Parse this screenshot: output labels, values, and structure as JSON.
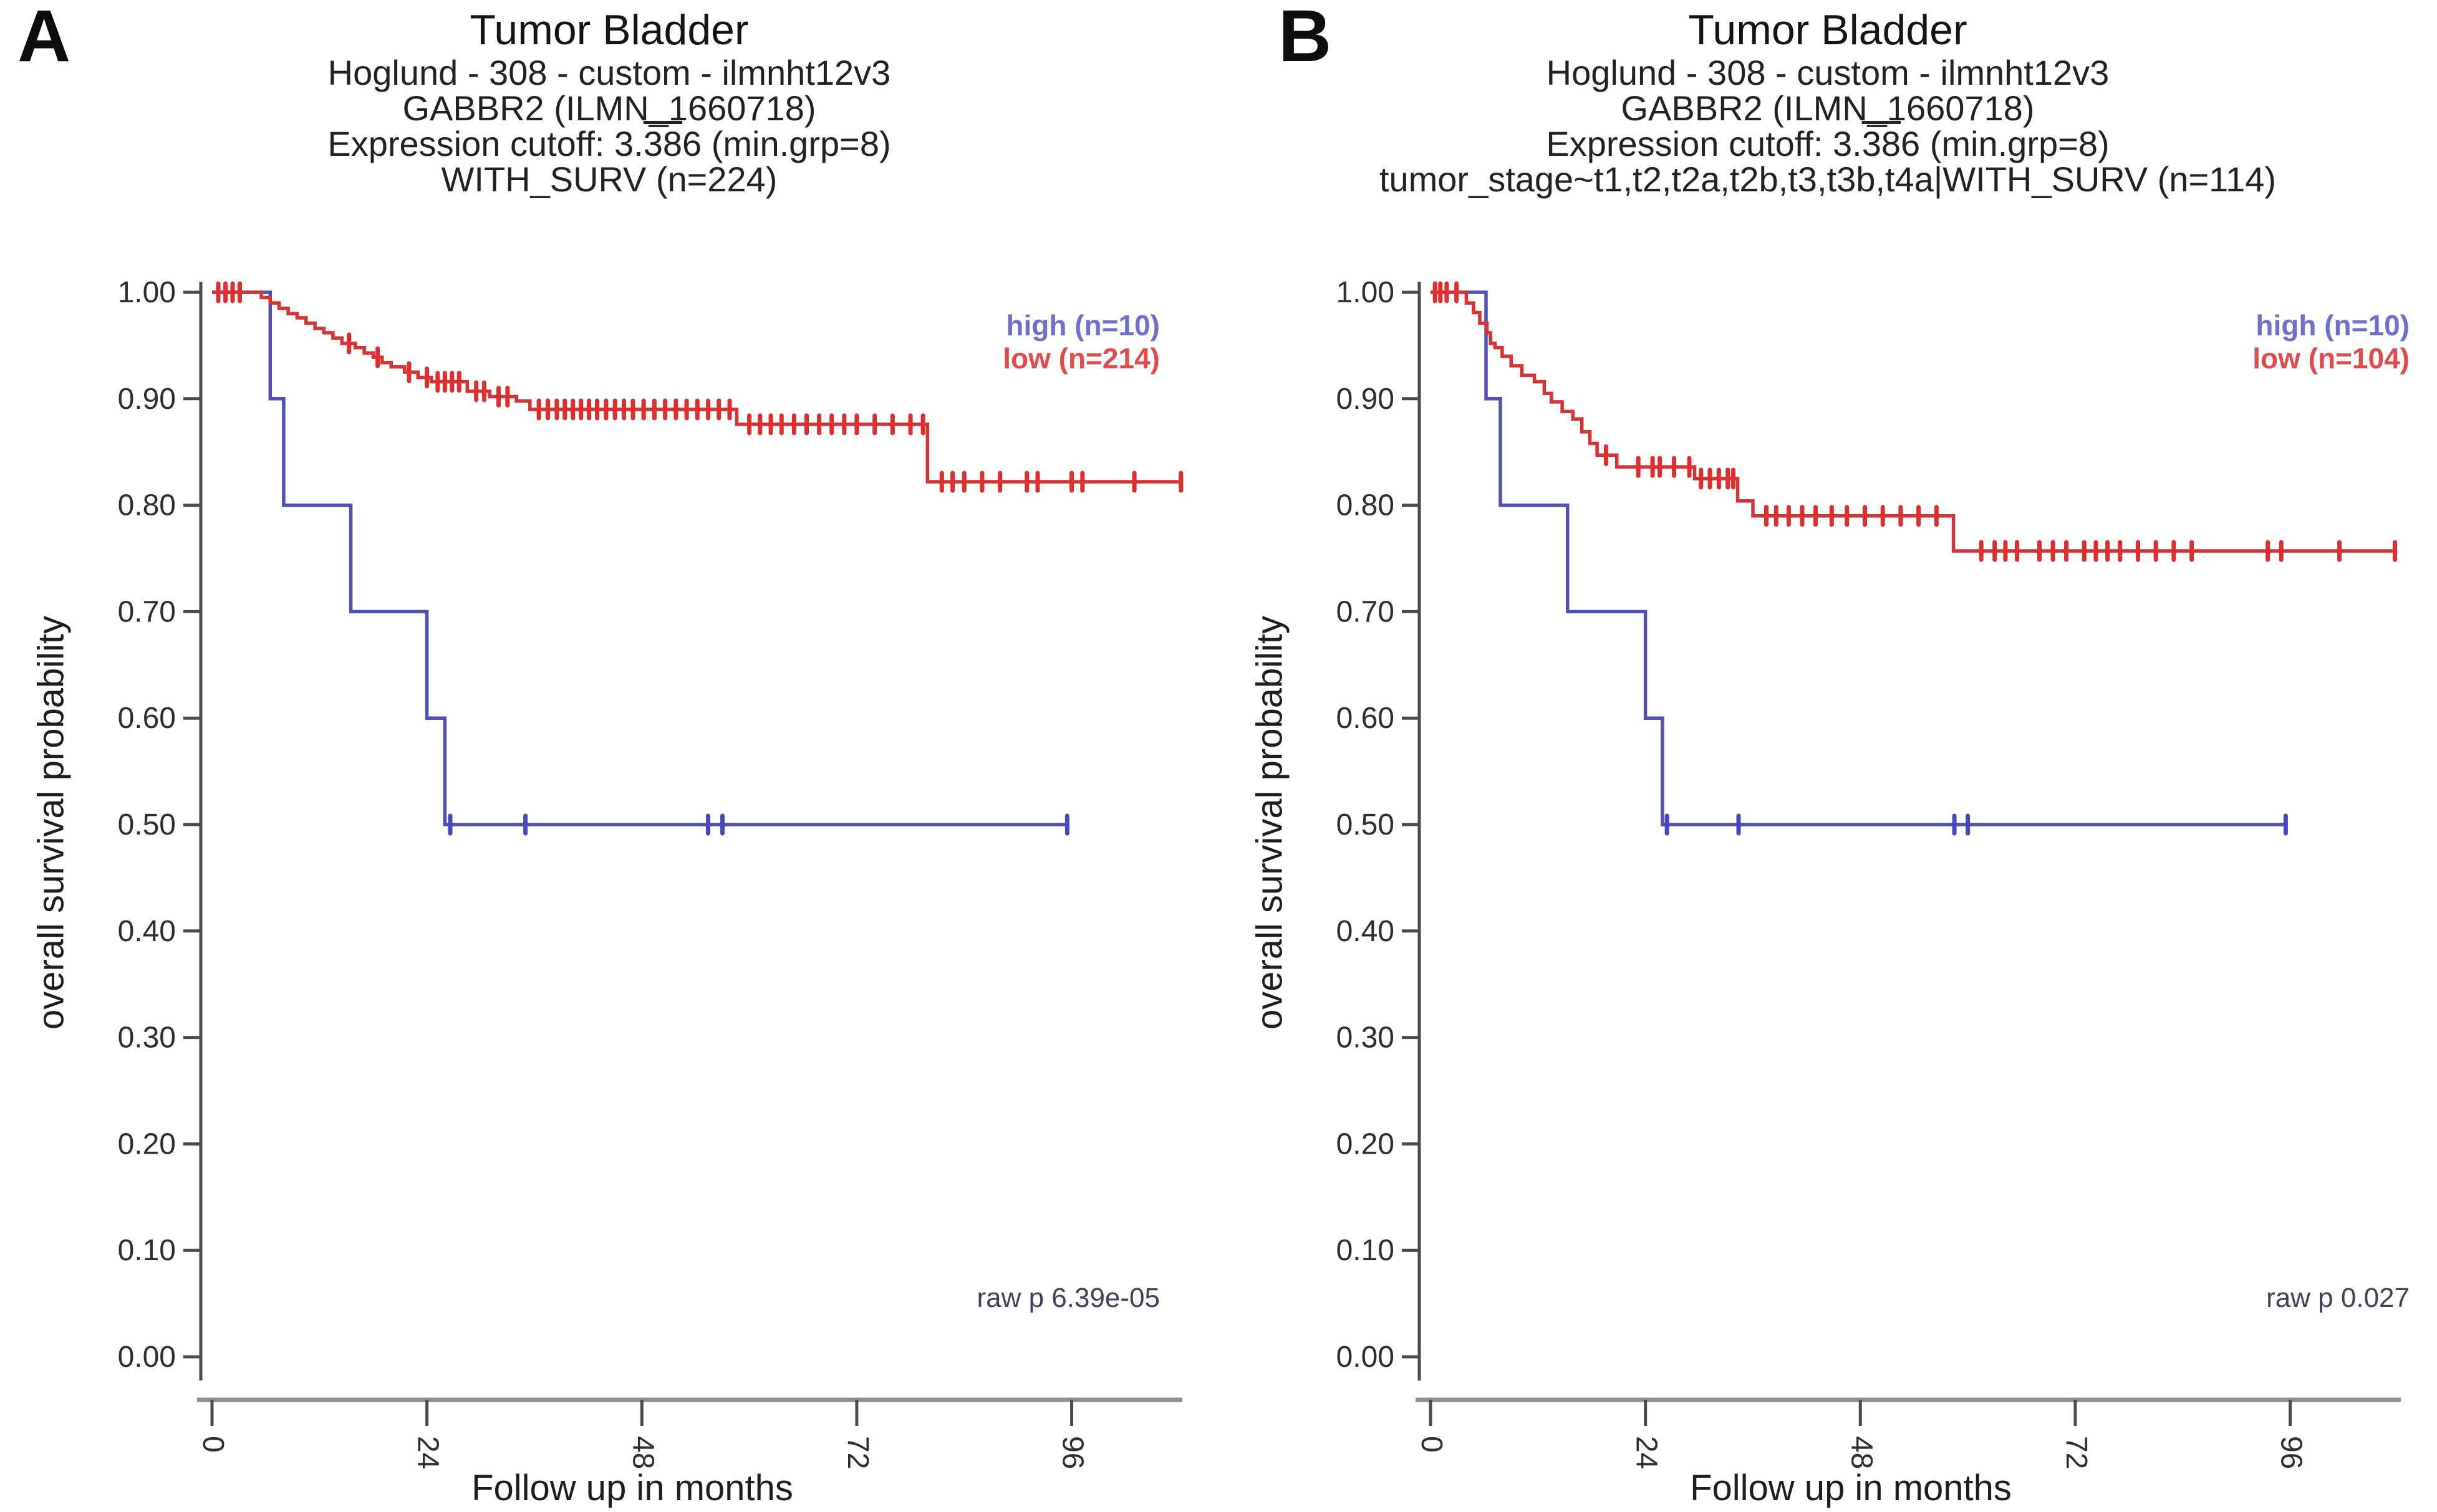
{
  "figure": {
    "background_color": "#ffffff",
    "description_colors": {
      "high_curve": "#5151b4",
      "low_curve": "#d43434"
    }
  },
  "panels": [
    {
      "panel_letter": "A",
      "chart_data": {
        "type": "line",
        "subtype": "kaplan-meier-step",
        "title_lines": [
          "Tumor Bladder",
          "Hoglund - 308 - custom - ilmnht12v3",
          "GABBR2 (ILMN_1660718)",
          "Expression cutoff: 3.386 (min.grp=8)",
          "WITH_SURV (n=224)"
        ],
        "overline_digits": "38",
        "xlabel": "Follow up in months",
        "ylabel": "overall survival probability",
        "xlim": [
          0,
          110
        ],
        "ylim": [
          0,
          1
        ],
        "x_ticks": [
          "0",
          "24",
          "48",
          "72",
          "96"
        ],
        "y_ticks": [
          "1.00",
          "0.90",
          "0.80",
          "0.70",
          "0.60",
          "0.50",
          "0.40",
          "0.30",
          "0.20",
          "0.10",
          "0.00"
        ],
        "grid": false,
        "legend_position": "top-right",
        "legend": [
          {
            "label": "high (n=10)",
            "color": "#6f6fcd"
          },
          {
            "label": "low (n=214)",
            "color": "#e14b4b"
          }
        ],
        "annotation_pvalue": "raw p 6.39e-05",
        "series": [
          {
            "name": "high",
            "n": 10,
            "color": "#5151b4",
            "censor_color": "#4646c0",
            "steps": [
              [
                0,
                1.0
              ],
              [
                6.5,
                0.9
              ],
              [
                8,
                0.8
              ],
              [
                15.5,
                0.7
              ],
              [
                24,
                0.6
              ],
              [
                26,
                0.5
              ],
              [
                95.5,
                0.5
              ]
            ],
            "censors": [
              [
                26.6,
                0.5
              ],
              [
                35,
                0.5
              ],
              [
                55.4,
                0.5
              ],
              [
                57,
                0.5
              ],
              [
                95.5,
                0.5
              ]
            ]
          },
          {
            "name": "low",
            "n": 214,
            "color": "#d43434",
            "censor_color": "#e02e2e",
            "steps": [
              [
                0,
                1.0
              ],
              [
                5.5,
                0.995
              ],
              [
                6.5,
                0.99
              ],
              [
                7.5,
                0.985
              ],
              [
                8.5,
                0.98
              ],
              [
                9.5,
                0.976
              ],
              [
                10.5,
                0.971
              ],
              [
                11.5,
                0.966
              ],
              [
                12.5,
                0.962
              ],
              [
                13.5,
                0.957
              ],
              [
                14.5,
                0.952
              ],
              [
                16,
                0.948
              ],
              [
                17,
                0.943
              ],
              [
                18,
                0.939
              ],
              [
                19,
                0.934
              ],
              [
                20,
                0.93
              ],
              [
                21.5,
                0.925
              ],
              [
                23,
                0.92
              ],
              [
                24.5,
                0.916
              ],
              [
                28.5,
                0.907
              ],
              [
                31,
                0.902
              ],
              [
                34,
                0.898
              ],
              [
                35.5,
                0.89
              ],
              [
                58.6,
                0.876
              ],
              [
                79.9,
                0.822
              ],
              [
                108.2,
                0.822
              ]
            ],
            "censors": [
              [
                0.7,
                1.0
              ],
              [
                1.5,
                1.0
              ],
              [
                2.3,
                1.0
              ],
              [
                3.1,
                1.0
              ],
              [
                15.3,
                0.952
              ],
              [
                18.5,
                0.939
              ],
              [
                22,
                0.925
              ],
              [
                24,
                0.92
              ],
              [
                25.2,
                0.916
              ],
              [
                26,
                0.916
              ],
              [
                26.8,
                0.916
              ],
              [
                27.6,
                0.916
              ],
              [
                29.5,
                0.907
              ],
              [
                30.4,
                0.907
              ],
              [
                32,
                0.902
              ],
              [
                33,
                0.902
              ],
              [
                36.5,
                0.89
              ],
              [
                37.5,
                0.89
              ],
              [
                38.5,
                0.89
              ],
              [
                39.4,
                0.89
              ],
              [
                40.3,
                0.89
              ],
              [
                41.2,
                0.89
              ],
              [
                42.1,
                0.89
              ],
              [
                43,
                0.89
              ],
              [
                44,
                0.89
              ],
              [
                45,
                0.89
              ],
              [
                46,
                0.89
              ],
              [
                47,
                0.89
              ],
              [
                48.2,
                0.89
              ],
              [
                49.4,
                0.89
              ],
              [
                50.6,
                0.89
              ],
              [
                51.8,
                0.89
              ],
              [
                53,
                0.89
              ],
              [
                54.2,
                0.89
              ],
              [
                55.4,
                0.89
              ],
              [
                56.6,
                0.89
              ],
              [
                57.8,
                0.89
              ],
              [
                60,
                0.876
              ],
              [
                61.2,
                0.876
              ],
              [
                62.4,
                0.876
              ],
              [
                63.6,
                0.876
              ],
              [
                65,
                0.876
              ],
              [
                66.4,
                0.876
              ],
              [
                67.8,
                0.876
              ],
              [
                69.2,
                0.876
              ],
              [
                70.6,
                0.876
              ],
              [
                72,
                0.876
              ],
              [
                74,
                0.876
              ],
              [
                76,
                0.876
              ],
              [
                78,
                0.876
              ],
              [
                79.4,
                0.876
              ],
              [
                81.5,
                0.822
              ],
              [
                82.7,
                0.822
              ],
              [
                84,
                0.822
              ],
              [
                86,
                0.822
              ],
              [
                88,
                0.822
              ],
              [
                91,
                0.822
              ],
              [
                92.2,
                0.822
              ],
              [
                96,
                0.822
              ],
              [
                97.2,
                0.822
              ],
              [
                103,
                0.822
              ],
              [
                108.2,
                0.822
              ]
            ]
          }
        ]
      }
    },
    {
      "panel_letter": "B",
      "chart_data": {
        "type": "line",
        "subtype": "kaplan-meier-step",
        "title_lines": [
          "Tumor Bladder",
          "Hoglund - 308 - custom - ilmnht12v3",
          "GABBR2 (ILMN_1660718)",
          "Expression cutoff: 3.386 (min.grp=8)",
          "tumor_stage~t1,t2,t2a,t2b,t3,t3b,t4a|WITH_SURV (n=114)"
        ],
        "overline_digits": "38",
        "xlabel": "Follow up in months",
        "ylabel": "overall survival probability",
        "xlim": [
          0,
          110
        ],
        "ylim": [
          0,
          1
        ],
        "x_ticks": [
          "0",
          "24",
          "48",
          "72",
          "96"
        ],
        "y_ticks": [
          "1.00",
          "0.90",
          "0.80",
          "0.70",
          "0.60",
          "0.50",
          "0.40",
          "0.30",
          "0.20",
          "0.10",
          "0.00"
        ],
        "grid": false,
        "legend_position": "top-right",
        "legend": [
          {
            "label": "high (n=10)",
            "color": "#6f6fcd"
          },
          {
            "label": "low (n=104)",
            "color": "#e14b4b"
          }
        ],
        "annotation_pvalue": "raw p 0.027",
        "series": [
          {
            "name": "high",
            "n": 10,
            "color": "#5151b4",
            "censor_color": "#4646c0",
            "steps": [
              [
                0,
                1.0
              ],
              [
                6.2,
                0.9
              ],
              [
                7.8,
                0.8
              ],
              [
                15.3,
                0.7
              ],
              [
                24,
                0.6
              ],
              [
                25.9,
                0.5
              ],
              [
                95.5,
                0.5
              ]
            ],
            "censors": [
              [
                26.4,
                0.5
              ],
              [
                34.4,
                0.5
              ],
              [
                58.5,
                0.5
              ],
              [
                60,
                0.5
              ],
              [
                95.5,
                0.5
              ]
            ]
          },
          {
            "name": "low",
            "n": 104,
            "color": "#d43434",
            "censor_color": "#e02e2e",
            "steps": [
              [
                0,
                1.0
              ],
              [
                4,
                0.99
              ],
              [
                4.8,
                0.981
              ],
              [
                5.5,
                0.971
              ],
              [
                6.3,
                0.962
              ],
              [
                6.7,
                0.952
              ],
              [
                7.2,
                0.948
              ],
              [
                8,
                0.94
              ],
              [
                9,
                0.931
              ],
              [
                10.2,
                0.922
              ],
              [
                11.6,
                0.916
              ],
              [
                12.7,
                0.905
              ],
              [
                13.5,
                0.897
              ],
              [
                14.7,
                0.888
              ],
              [
                15.9,
                0.881
              ],
              [
                16.9,
                0.869
              ],
              [
                17.8,
                0.858
              ],
              [
                18.6,
                0.847
              ],
              [
                20.8,
                0.836
              ],
              [
                29.5,
                0.825
              ],
              [
                34.3,
                0.804
              ],
              [
                36,
                0.79
              ],
              [
                58.4,
                0.757
              ],
              [
                107.7,
                0.757
              ]
            ],
            "censors": [
              [
                0.5,
                1.0
              ],
              [
                1.1,
                1.0
              ],
              [
                1.8,
                1.0
              ],
              [
                2.9,
                1.0
              ],
              [
                19.6,
                0.847
              ],
              [
                23.2,
                0.836
              ],
              [
                24.8,
                0.836
              ],
              [
                25.6,
                0.836
              ],
              [
                27.2,
                0.836
              ],
              [
                28.9,
                0.836
              ],
              [
                30.2,
                0.825
              ],
              [
                31.2,
                0.825
              ],
              [
                32.2,
                0.825
              ],
              [
                33.2,
                0.825
              ],
              [
                33.8,
                0.825
              ],
              [
                37.5,
                0.79
              ],
              [
                38.6,
                0.79
              ],
              [
                40,
                0.79
              ],
              [
                41.5,
                0.79
              ],
              [
                43,
                0.79
              ],
              [
                44.8,
                0.79
              ],
              [
                46.5,
                0.79
              ],
              [
                48.5,
                0.79
              ],
              [
                50.5,
                0.79
              ],
              [
                52.5,
                0.79
              ],
              [
                54.5,
                0.79
              ],
              [
                56.5,
                0.79
              ],
              [
                61.5,
                0.757
              ],
              [
                63,
                0.757
              ],
              [
                64.2,
                0.757
              ],
              [
                65.5,
                0.757
              ],
              [
                68,
                0.757
              ],
              [
                69.5,
                0.757
              ],
              [
                71,
                0.757
              ],
              [
                73,
                0.757
              ],
              [
                74.3,
                0.757
              ],
              [
                75.6,
                0.757
              ],
              [
                77,
                0.757
              ],
              [
                79,
                0.757
              ],
              [
                81,
                0.757
              ],
              [
                83,
                0.757
              ],
              [
                85,
                0.757
              ],
              [
                93.5,
                0.757
              ],
              [
                95,
                0.757
              ],
              [
                101.5,
                0.757
              ],
              [
                107.7,
                0.757
              ]
            ]
          }
        ]
      }
    }
  ]
}
